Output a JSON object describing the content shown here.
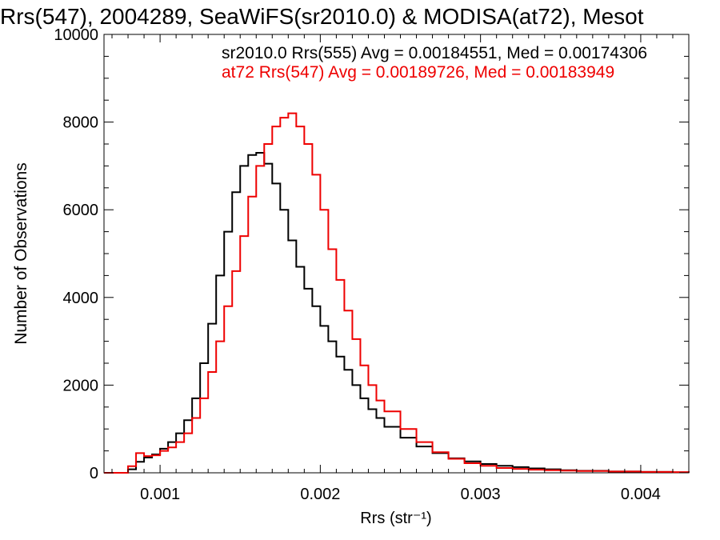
{
  "chart_data": {
    "type": "line",
    "title": "Rrs(547), 2004289, SeaWiFS(sr2010.0) & MODISA(at72), Mesot",
    "xlabel": "Rrs (str⁻¹)",
    "ylabel": "Number of Observations",
    "xlim": [
      0.00065,
      0.0043
    ],
    "ylim": [
      0,
      10000
    ],
    "x_ticks": [
      0.001,
      0.002,
      0.003,
      0.004
    ],
    "x_tick_labels": [
      "0.001",
      "0.002",
      "0.003",
      "0.004"
    ],
    "y_ticks": [
      0,
      2000,
      4000,
      6000,
      8000,
      10000
    ],
    "y_tick_labels": [
      "0",
      "2000",
      "4000",
      "6000",
      "8000",
      "10000"
    ],
    "grid": false,
    "legend_position": "top-right",
    "annotations": [
      {
        "text": "sr2010.0 Rrs(555) Avg = 0.00184551, Med = 0.00174306",
        "color": "#000000"
      },
      {
        "text": "at72 Rrs(547) Avg = 0.00189726, Med = 0.00183949",
        "color": "#ee0000"
      }
    ],
    "series": [
      {
        "color": "#000000",
        "style": "step",
        "x": [
          0.00065,
          0.00078,
          0.0008,
          0.00085,
          0.0009,
          0.00095,
          0.001,
          0.00105,
          0.0011,
          0.00115,
          0.0012,
          0.00125,
          0.0013,
          0.00135,
          0.0014,
          0.00145,
          0.0015,
          0.00155,
          0.0016,
          0.00165,
          0.0017,
          0.00175,
          0.0018,
          0.00185,
          0.0019,
          0.00195,
          0.002,
          0.00205,
          0.0021,
          0.00215,
          0.0022,
          0.00225,
          0.0023,
          0.00235,
          0.0024,
          0.0025,
          0.0026,
          0.0027,
          0.0028,
          0.0029,
          0.003,
          0.0031,
          0.0032,
          0.0033,
          0.0034,
          0.0035,
          0.0036,
          0.0038,
          0.004,
          0.0042,
          0.0043
        ],
        "y": [
          0,
          0,
          80,
          250,
          350,
          420,
          550,
          700,
          900,
          1200,
          1700,
          2500,
          3400,
          4500,
          5500,
          6400,
          7000,
          7250,
          7300,
          7050,
          6600,
          6000,
          5300,
          4700,
          4200,
          3800,
          3350,
          3000,
          2650,
          2350,
          2000,
          1700,
          1450,
          1250,
          1050,
          800,
          600,
          450,
          330,
          260,
          200,
          160,
          130,
          100,
          80,
          60,
          45,
          30,
          20,
          10,
          5
        ]
      },
      {
        "color": "#ee0000",
        "style": "step",
        "x": [
          0.00065,
          0.00078,
          0.0008,
          0.00085,
          0.0009,
          0.00095,
          0.001,
          0.00105,
          0.0011,
          0.00115,
          0.0012,
          0.00125,
          0.0013,
          0.00135,
          0.0014,
          0.00145,
          0.0015,
          0.00155,
          0.0016,
          0.00165,
          0.0017,
          0.00175,
          0.0018,
          0.00185,
          0.0019,
          0.00195,
          0.002,
          0.00205,
          0.0021,
          0.00215,
          0.0022,
          0.00225,
          0.0023,
          0.00235,
          0.0024,
          0.0025,
          0.0026,
          0.0027,
          0.0028,
          0.0029,
          0.003,
          0.0031,
          0.0032,
          0.0033,
          0.0034,
          0.0035,
          0.0036,
          0.0038,
          0.004,
          0.0042,
          0.0043
        ],
        "y": [
          0,
          0,
          150,
          450,
          380,
          400,
          500,
          580,
          700,
          900,
          1250,
          1700,
          2300,
          3000,
          3800,
          4600,
          5400,
          6300,
          7000,
          7500,
          7900,
          8100,
          8200,
          7900,
          7500,
          6800,
          6000,
          5100,
          4400,
          3700,
          3050,
          2450,
          2000,
          1650,
          1400,
          1000,
          700,
          470,
          320,
          220,
          160,
          110,
          90,
          70,
          60,
          50,
          40,
          30,
          20,
          15,
          10
        ]
      }
    ]
  }
}
